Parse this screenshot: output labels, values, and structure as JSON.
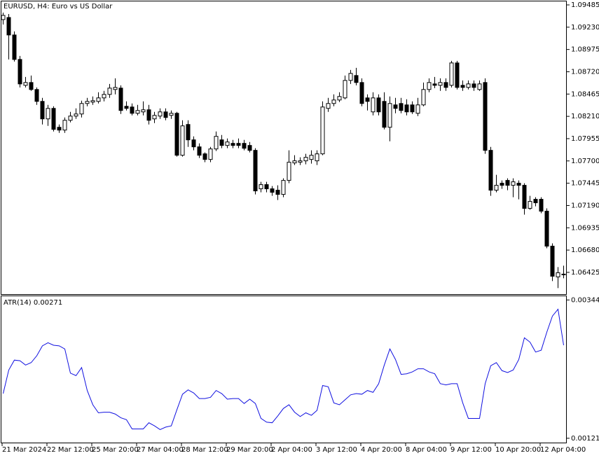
{
  "chart_data": [
    {
      "type": "candlestick",
      "title": "EURUSD, H4: Euro vs US Dollar",
      "up_color": "#ffffff",
      "down_color": "#000000",
      "categories": [
        "21 Mar 2024",
        null,
        null,
        null,
        null,
        null,
        null,
        null,
        "22 Mar 12:00",
        null,
        null,
        null,
        null,
        null,
        null,
        null,
        "25 Mar 20:00",
        null,
        null,
        null,
        null,
        null,
        null,
        null,
        "27 Mar 04:00",
        null,
        null,
        null,
        null,
        null,
        null,
        null,
        "28 Mar 12:00",
        null,
        null,
        null,
        null,
        null,
        null,
        null,
        "29 Mar 20:00",
        null,
        null,
        null,
        null,
        null,
        null,
        null,
        "2 Apr 04:00",
        null,
        null,
        null,
        null,
        null,
        null,
        null,
        "3 Apr 12:00",
        null,
        null,
        null,
        null,
        null,
        null,
        null,
        "4 Apr 20:00",
        null,
        null,
        null,
        null,
        null,
        null,
        null,
        "8 Apr 04:00",
        null,
        null,
        null,
        null,
        null,
        null,
        null,
        "9 Apr 12:00",
        null,
        null,
        null,
        null,
        null,
        null,
        null,
        "10 Apr 20:00",
        null,
        null,
        null,
        null,
        null,
        null,
        null,
        "12 Apr 04:00",
        null,
        null,
        null,
        null
      ],
      "open": [
        1.09317,
        1.09341,
        1.09141,
        1.08861,
        1.08565,
        1.08597,
        1.08517,
        1.08381,
        1.08181,
        1.08301,
        1.08085,
        1.08053,
        1.08165,
        1.08213,
        1.08237,
        1.08357,
        1.08373,
        1.08381,
        1.08421,
        1.08461,
        1.08517,
        1.08533,
        1.08325,
        1.08317,
        1.08245,
        1.08261,
        1.08285,
        1.08181,
        1.08213,
        1.08261,
        1.08221,
        1.08245,
        1.07765,
        1.08117,
        1.07941,
        1.07861,
        1.07781,
        1.07717,
        1.07837,
        1.07941,
        1.07877,
        1.07901,
        1.07901,
        1.07901,
        1.07877,
        1.07821,
        1.07381,
        1.07429,
        1.07381,
        1.07365,
        1.07317,
        1.07477,
        1.07677,
        1.07685,
        1.07701,
        1.07717,
        1.07701,
        1.07781,
        1.08301,
        1.08357,
        1.08397,
        1.08421,
        1.08621,
        1.08677,
        1.08597,
        1.08421,
        1.08261,
        1.08421,
        1.08381,
        1.08085,
        1.08341,
        1.08357,
        1.08341,
        1.08341,
        1.08245,
        1.08341,
        1.08517,
        1.08581,
        1.08565,
        1.08597,
        1.08565,
        1.08821,
        1.08565,
        1.08541,
        1.08581,
        1.08517,
        1.08597,
        1.07821,
        1.07365,
        1.07445,
        1.07477,
        1.07421,
        1.07445,
        1.07421,
        1.07157,
        1.07261,
        1.07261,
        1.07125,
        1.06725,
        1.06373,
        1.06405
      ],
      "high": [
        1.09397,
        1.09381,
        1.09181,
        1.08901,
        1.08661,
        1.08677,
        1.08541,
        1.08421,
        1.08341,
        1.08325,
        1.08117,
        1.08197,
        1.08261,
        1.08301,
        1.08389,
        1.08421,
        1.08437,
        1.08485,
        1.08501,
        1.08581,
        1.08645,
        1.08565,
        1.08381,
        1.08357,
        1.08341,
        1.08381,
        1.08341,
        1.08261,
        1.08301,
        1.08301,
        1.08277,
        1.08261,
        1.08165,
        1.08165,
        1.07981,
        1.07901,
        1.07797,
        1.07861,
        1.08037,
        1.07997,
        1.07957,
        1.07941,
        1.07957,
        1.07941,
        1.07917,
        1.07845,
        1.07461,
        1.07461,
        1.07413,
        1.07421,
        1.07501,
        1.07821,
        1.07765,
        1.07741,
        1.07781,
        1.07821,
        1.07821,
        1.08381,
        1.08421,
        1.08461,
        1.08485,
        1.08677,
        1.08741,
        1.08765,
        1.08645,
        1.08461,
        1.08485,
        1.08461,
        1.08485,
        1.08437,
        1.08421,
        1.08421,
        1.08405,
        1.08381,
        1.08421,
        1.08597,
        1.08645,
        1.08661,
        1.08645,
        1.08645,
        1.08845,
        1.08845,
        1.08621,
        1.08621,
        1.08621,
        1.08621,
        1.08645,
        1.07861,
        1.07541,
        1.07477,
        1.07501,
        1.07501,
        1.07477,
        1.07445,
        1.07301,
        1.07285,
        1.07285,
        1.07157,
        1.06757,
        1.06485,
        1.06501
      ],
      "low": [
        1.09261,
        1.08861,
        1.08837,
        1.08541,
        1.08541,
        1.08501,
        1.08341,
        1.08117,
        1.08101,
        1.08037,
        1.08021,
        1.08021,
        1.08141,
        1.08181,
        1.08197,
        1.08325,
        1.08341,
        1.08357,
        1.08381,
        1.08421,
        1.08461,
        1.08237,
        1.08277,
        1.08221,
        1.08221,
        1.08221,
        1.08117,
        1.08133,
        1.08181,
        1.08165,
        1.08181,
        1.07749,
        1.07749,
        1.07861,
        1.07821,
        1.07733,
        1.07685,
        1.07685,
        1.07813,
        1.07845,
        1.07845,
        1.07845,
        1.07845,
        1.07821,
        1.07797,
        1.07317,
        1.07341,
        1.07341,
        1.07301,
        1.07253,
        1.07285,
        1.07445,
        1.07653,
        1.07653,
        1.07661,
        1.07669,
        1.07653,
        1.07765,
        1.08261,
        1.08325,
        1.08373,
        1.08405,
        1.08581,
        1.08565,
        1.08325,
        1.08277,
        1.08221,
        1.08221,
        1.08061,
        1.07925,
        1.08245,
        1.08245,
        1.08221,
        1.08237,
        1.08213,
        1.08325,
        1.08485,
        1.08533,
        1.08501,
        1.08501,
        1.08541,
        1.08517,
        1.08501,
        1.08517,
        1.08501,
        1.08501,
        1.07781,
        1.07301,
        1.07341,
        1.07381,
        1.07365,
        1.07285,
        1.07261,
        1.07085,
        1.07141,
        1.07181,
        1.07101,
        1.06701,
        1.06325,
        1.06245,
        1.06357
      ],
      "close": [
        1.09365,
        1.09141,
        1.08861,
        1.08581,
        1.08597,
        1.08517,
        1.08381,
        1.08181,
        1.08301,
        1.08061,
        1.08053,
        1.08165,
        1.08213,
        1.08237,
        1.08357,
        1.08381,
        1.08389,
        1.08421,
        1.08461,
        1.08533,
        1.08541,
        1.08277,
        1.08301,
        1.08245,
        1.08277,
        1.08285,
        1.08165,
        1.08221,
        1.08261,
        1.08197,
        1.08245,
        1.07765,
        1.08101,
        1.07941,
        1.07861,
        1.07765,
        1.07717,
        1.07837,
        1.07981,
        1.07877,
        1.07917,
        1.07877,
        1.07877,
        1.07845,
        1.07821,
        1.07357,
        1.07429,
        1.07381,
        1.07341,
        1.07317,
        1.07477,
        1.07685,
        1.07701,
        1.07701,
        1.07741,
        1.07765,
        1.07781,
        1.08317,
        1.08357,
        1.08397,
        1.08437,
        1.08621,
        1.08701,
        1.08597,
        1.08357,
        1.08381,
        1.08421,
        1.08261,
        1.08085,
        1.08357,
        1.08301,
        1.08277,
        1.08261,
        1.08261,
        1.08341,
        1.08517,
        1.08597,
        1.08565,
        1.08597,
        1.08541,
        1.08821,
        1.08541,
        1.08541,
        1.08581,
        1.08541,
        1.08581,
        1.07821,
        1.07365,
        1.07421,
        1.07421,
        1.07421,
        1.07461,
        1.07421,
        1.07157,
        1.07237,
        1.07221,
        1.07125,
        1.06725,
        1.06381,
        1.06421,
        1.06397
      ],
      "ylim": [
        1.06176,
        1.09525
      ],
      "yticks": [
        1.09485,
        {
          "value": 1.0923,
          "label": "1.09230"
        },
        1.08975,
        {
          "value": 1.0872,
          "label": "1.08720"
        },
        1.08465,
        {
          "value": 1.0821,
          "label": "1.08210"
        },
        1.07955,
        {
          "value": 1.077,
          "label": "1.07700"
        },
        1.07445,
        {
          "value": 1.0719,
          "label": "1.07190"
        },
        1.06935,
        {
          "value": 1.0668,
          "label": "1.06680"
        },
        1.06425
      ]
    },
    {
      "type": "line",
      "title": "ATR(14) 0.00271",
      "color": "#1010e0",
      "values": [
        0.00193,
        0.00231,
        0.00247,
        0.00246,
        0.00239,
        0.00243,
        0.00254,
        0.0027,
        0.00275,
        0.00271,
        0.0027,
        0.00265,
        0.00226,
        0.00222,
        0.00235,
        0.00198,
        0.00175,
        0.00162,
        0.00163,
        0.00163,
        0.0016,
        0.00154,
        0.00151,
        0.00136,
        0.00136,
        0.00136,
        0.00146,
        0.00141,
        0.00135,
        0.00139,
        0.00141,
        0.00167,
        0.00192,
        0.00199,
        0.00194,
        0.00185,
        0.00185,
        0.00187,
        0.00198,
        0.00193,
        0.00184,
        0.00185,
        0.00185,
        0.00177,
        0.00184,
        0.00177,
        0.00153,
        0.00147,
        0.00146,
        0.00157,
        0.00169,
        0.00175,
        0.00163,
        0.00156,
        0.00162,
        0.00158,
        0.00166,
        0.00206,
        0.00204,
        0.00178,
        0.00175,
        0.00183,
        0.00191,
        0.00193,
        0.00192,
        0.00198,
        0.00195,
        0.00209,
        0.00239,
        0.00265,
        0.00248,
        0.00224,
        0.00225,
        0.00228,
        0.00233,
        0.00233,
        0.00228,
        0.00225,
        0.00209,
        0.00207,
        0.00209,
        0.00209,
        0.00178,
        0.00153,
        0.00153,
        0.00153,
        0.00209,
        0.00238,
        0.00243,
        0.0023,
        0.00227,
        0.00231,
        0.00248,
        0.00283,
        0.00276,
        0.0026,
        0.00263,
        0.00292,
        0.00318,
        0.00329,
        0.00271
      ],
      "ylim": [
        0.00114,
        0.0035
      ],
      "yticks": [
        0.00344,
        0.00121
      ]
    }
  ]
}
